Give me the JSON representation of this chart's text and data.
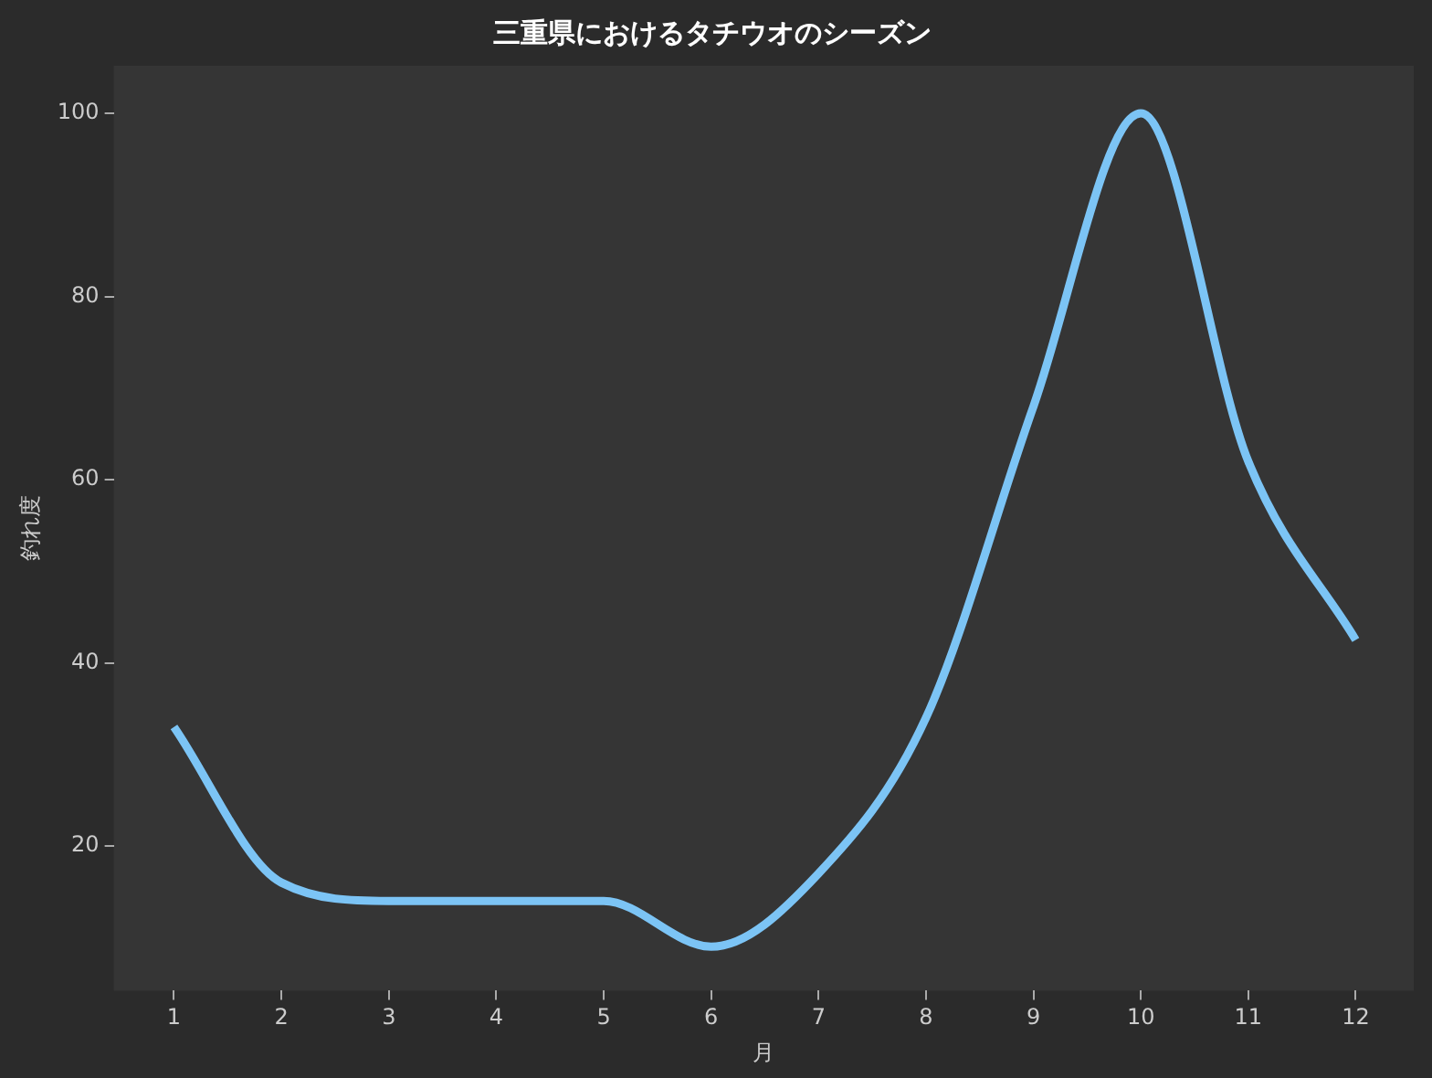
{
  "chart_data": {
    "type": "line",
    "title": "三重県におけるタチウオのシーズン",
    "xlabel": "月",
    "ylabel": "釣れ度",
    "x": [
      1,
      2,
      3,
      4,
      5,
      6,
      7,
      8,
      9,
      10,
      11,
      12
    ],
    "series": [
      {
        "color": "#7cc4f5",
        "values": [
          33,
          16,
          14,
          14,
          14,
          9,
          17,
          34,
          68,
          100,
          62,
          42.5
        ]
      }
    ],
    "xlim": [
      0.44,
      12.54
    ],
    "xticks": [
      1,
      2,
      3,
      4,
      5,
      6,
      7,
      8,
      9,
      10,
      11,
      12
    ],
    "ylim": [
      4.2,
      105.2
    ],
    "yticks": [
      20,
      40,
      60,
      80,
      100
    ],
    "grid": false,
    "legend": false,
    "marker": "none",
    "line_style": "solid"
  }
}
